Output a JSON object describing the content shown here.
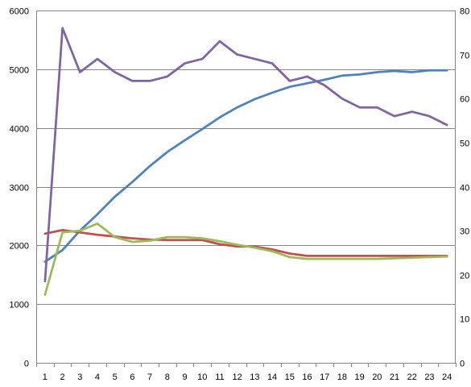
{
  "chart_data": {
    "type": "line",
    "title": "",
    "xlabel": "",
    "ylabel": "",
    "y2label": "",
    "grid": true,
    "legend": "none",
    "x": [
      1,
      2,
      3,
      4,
      5,
      6,
      7,
      8,
      9,
      10,
      11,
      12,
      13,
      14,
      15,
      16,
      17,
      18,
      19,
      20,
      21,
      22,
      23,
      24
    ],
    "x_tick_labels": [
      "1",
      "2",
      "3",
      "4",
      "5",
      "6",
      "7",
      "8",
      "9",
      "10",
      "11",
      "12",
      "13",
      "14",
      "15",
      "16",
      "17",
      "18",
      "19",
      "20",
      "21",
      "22",
      "23",
      "24"
    ],
    "ylim": [
      0,
      6000
    ],
    "y_ticks": [
      0,
      1000,
      2000,
      3000,
      4000,
      5000,
      6000
    ],
    "y_tick_labels": [
      "0",
      "1000",
      "2000",
      "3000",
      "4000",
      "5000",
      "6000"
    ],
    "y2lim": [
      0,
      80
    ],
    "y2_ticks": [
      0,
      10,
      20,
      30,
      40,
      50,
      60,
      70,
      80
    ],
    "y2_tick_labels": [
      "0",
      "10",
      "20",
      "30",
      "40",
      "50",
      "60",
      "70",
      "80"
    ],
    "series": [
      {
        "color": "#4f81bd",
        "axis": "left",
        "values": [
          1720,
          1920,
          2250,
          2530,
          2830,
          3080,
          3350,
          3590,
          3790,
          3980,
          4180,
          4350,
          4490,
          4600,
          4700,
          4760,
          4820,
          4890,
          4910,
          4950,
          4970,
          4950,
          4980,
          4980
        ]
      },
      {
        "color": "#c0504d",
        "axis": "left",
        "values": [
          2200,
          2260,
          2220,
          2180,
          2150,
          2120,
          2100,
          2090,
          2090,
          2090,
          2020,
          1980,
          1980,
          1930,
          1860,
          1820,
          1820,
          1820,
          1820,
          1820,
          1820,
          1820,
          1820,
          1820
        ]
      },
      {
        "color": "#9bbb59",
        "axis": "left",
        "values": [
          1160,
          2220,
          2250,
          2370,
          2140,
          2060,
          2080,
          2140,
          2140,
          2120,
          2070,
          2010,
          1960,
          1900,
          1800,
          1770,
          1770,
          1770,
          1770,
          1770,
          1780,
          1790,
          1800,
          1810
        ]
      },
      {
        "color": "#8064a2",
        "axis": "right",
        "values": [
          18.5,
          76,
          66,
          69,
          66,
          64,
          64,
          65,
          68,
          69,
          73,
          70,
          69,
          68,
          64,
          65,
          63,
          60,
          58,
          58,
          56,
          57,
          56,
          54
        ]
      }
    ]
  }
}
